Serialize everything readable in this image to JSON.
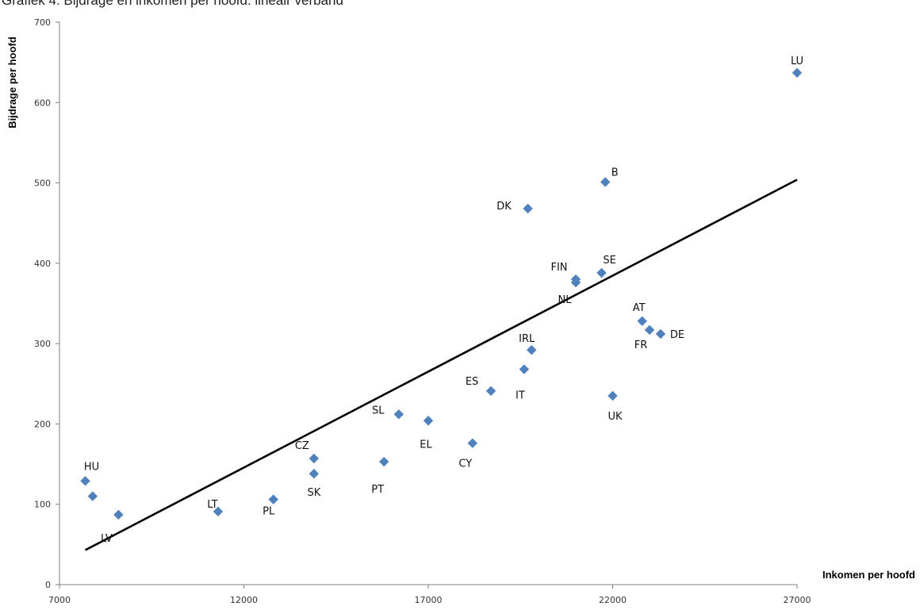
{
  "chart_data": {
    "type": "scatter",
    "title": "Grafiek 4: Bijdrage en inkomen per hoofd: lineair verband",
    "xlabel": "Inkomen per hoofd",
    "ylabel": "Bijdrage per hoofd",
    "xlim": [
      7000,
      27000
    ],
    "ylim": [
      0,
      700
    ],
    "xticks": [
      7000,
      12000,
      17000,
      22000,
      27000
    ],
    "yticks": [
      0,
      100,
      200,
      300,
      400,
      500,
      600,
      700
    ],
    "grid": false,
    "legend": "none",
    "colors": {
      "marker": "#4F81BD",
      "trendline": "#000000",
      "axis": "#7F7F7F"
    },
    "points": [
      {
        "label": "LU",
        "x": 27000,
        "y": 637
      },
      {
        "label": "B",
        "x": 21800,
        "y": 501
      },
      {
        "label": "DK",
        "x": 19700,
        "y": 468
      },
      {
        "label": "SE",
        "x": 21700,
        "y": 388
      },
      {
        "label": "FIN",
        "x": 21000,
        "y": 380
      },
      {
        "label": "NL",
        "x": 21000,
        "y": 376
      },
      {
        "label": "AT",
        "x": 22800,
        "y": 328
      },
      {
        "label": "FR",
        "x": 23000,
        "y": 317
      },
      {
        "label": "DE",
        "x": 23300,
        "y": 312
      },
      {
        "label": "IRL",
        "x": 19800,
        "y": 292
      },
      {
        "label": "IT",
        "x": 19600,
        "y": 268
      },
      {
        "label": "ES",
        "x": 18700,
        "y": 241
      },
      {
        "label": "UK",
        "x": 22000,
        "y": 235
      },
      {
        "label": "SL",
        "x": 16200,
        "y": 212
      },
      {
        "label": "EL",
        "x": 17000,
        "y": 204
      },
      {
        "label": "CY",
        "x": 18200,
        "y": 176
      },
      {
        "label": "CZ",
        "x": 13900,
        "y": 157
      },
      {
        "label": "PT",
        "x": 15800,
        "y": 153
      },
      {
        "label": "SK",
        "x": 13900,
        "y": 138
      },
      {
        "label": "HU",
        "x": 7700,
        "y": 129
      },
      {
        "label": "",
        "x": 7900,
        "y": 110
      },
      {
        "label": "PL",
        "x": 12800,
        "y": 106
      },
      {
        "label": "LT",
        "x": 11300,
        "y": 91
      },
      {
        "label": "LV",
        "x": 8600,
        "y": 87
      }
    ],
    "trendline": {
      "x": [
        7700,
        27000
      ],
      "y": [
        43,
        504
      ]
    }
  }
}
